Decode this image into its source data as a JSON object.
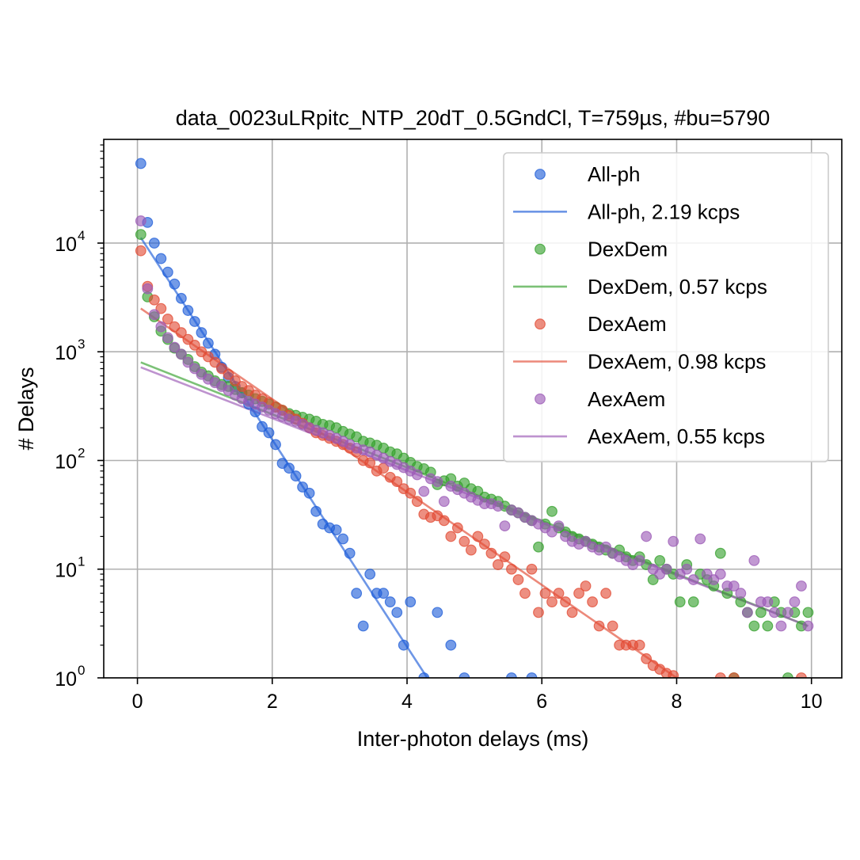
{
  "chart_data": {
    "type": "scatter",
    "title": "data_0023uLRpitc_NTP_20dT_0.5GndCl, T=759µs, #bu=5790",
    "xlabel": "Inter-photon delays (ms)",
    "ylabel": "# Delays",
    "xlim": [
      -0.5,
      10.45
    ],
    "ylim": [
      1,
      90000
    ],
    "yscale": "log",
    "grid": true,
    "legend_position": "top-right",
    "x_ticks": [
      "0",
      "2",
      "4",
      "6",
      "8",
      "10"
    ],
    "y_ticks": [
      {
        "base": "10",
        "exp": "0"
      },
      {
        "base": "10",
        "exp": "1"
      },
      {
        "base": "10",
        "exp": "2"
      },
      {
        "base": "10",
        "exp": "3"
      },
      {
        "base": "10",
        "exp": "4"
      }
    ],
    "series": [
      {
        "name": "All-ph",
        "fit_name": "All-ph, 2.19 kcps",
        "color": "#1f5ed8",
        "fit": {
          "x": [
            0.05,
            4.3
          ],
          "y": [
            11200,
            1
          ]
        },
        "x": [
          0.05,
          0.15,
          0.25,
          0.35,
          0.45,
          0.55,
          0.65,
          0.75,
          0.85,
          0.95,
          1.05,
          1.15,
          1.25,
          1.35,
          1.45,
          1.55,
          1.65,
          1.75,
          1.85,
          1.95,
          2.05,
          2.15,
          2.25,
          2.35,
          2.45,
          2.55,
          2.65,
          2.75,
          2.85,
          2.95,
          3.05,
          3.15,
          3.25,
          3.35,
          3.45,
          3.55,
          3.65,
          3.75,
          3.85,
          3.95,
          4.05,
          4.25,
          4.45,
          4.65,
          4.85,
          5.55,
          5.85
        ],
        "y": [
          54000,
          15500,
          10000,
          7200,
          5400,
          4200,
          3100,
          2400,
          1900,
          1500,
          1200,
          950,
          720,
          580,
          480,
          420,
          330,
          280,
          205,
          180,
          140,
          94,
          85,
          72,
          57,
          50,
          34,
          26,
          24,
          23,
          19,
          14,
          6,
          3,
          9,
          6,
          6,
          5,
          4,
          2,
          5,
          1,
          4,
          2,
          1,
          1,
          1
        ]
      },
      {
        "name": "DexDem",
        "fit_name": "DexDem, 0.57 kcps",
        "color": "#34a02c",
        "fit": {
          "x": [
            0.05,
            9.95
          ],
          "y": [
            800,
            3
          ]
        },
        "x": [
          0.05,
          0.15,
          0.25,
          0.35,
          0.45,
          0.55,
          0.65,
          0.75,
          0.85,
          0.95,
          1.05,
          1.15,
          1.25,
          1.35,
          1.45,
          1.55,
          1.65,
          1.75,
          1.85,
          1.95,
          2.05,
          2.15,
          2.25,
          2.35,
          2.45,
          2.55,
          2.65,
          2.75,
          2.85,
          2.95,
          3.05,
          3.15,
          3.25,
          3.35,
          3.45,
          3.55,
          3.65,
          3.75,
          3.85,
          3.95,
          4.05,
          4.15,
          4.25,
          4.35,
          4.45,
          4.55,
          4.65,
          4.75,
          4.85,
          4.95,
          5.05,
          5.15,
          5.25,
          5.35,
          5.45,
          5.55,
          5.65,
          5.75,
          5.85,
          5.95,
          6.05,
          6.15,
          6.25,
          6.35,
          6.45,
          6.55,
          6.65,
          6.75,
          6.85,
          6.95,
          7.05,
          7.15,
          7.25,
          7.35,
          7.45,
          7.55,
          7.65,
          7.75,
          7.85,
          7.95,
          8.05,
          8.15,
          8.25,
          8.35,
          8.45,
          8.55,
          8.65,
          8.75,
          8.85,
          8.95,
          9.05,
          9.15,
          9.25,
          9.35,
          9.45,
          9.55,
          9.65,
          9.75,
          9.85,
          9.95
        ],
        "y": [
          12000,
          3200,
          2100,
          1550,
          1300,
          1080,
          950,
          850,
          730,
          650,
          600,
          540,
          500,
          480,
          450,
          420,
          400,
          370,
          350,
          330,
          310,
          290,
          270,
          260,
          250,
          240,
          230,
          215,
          210,
          200,
          185,
          175,
          165,
          150,
          145,
          138,
          130,
          120,
          115,
          105,
          96,
          88,
          84,
          78,
          60,
          65,
          68,
          58,
          62,
          55,
          52,
          46,
          44,
          42,
          38,
          35,
          33,
          30,
          28,
          16,
          26,
          34,
          24,
          22,
          20,
          19,
          18,
          17,
          16,
          15,
          14,
          15,
          13,
          12,
          13,
          11,
          8,
          12,
          10,
          9,
          5,
          11,
          5,
          9,
          8,
          7,
          14,
          6,
          1,
          5,
          4,
          3,
          4,
          3,
          5,
          4,
          1,
          4,
          3,
          4
        ]
      },
      {
        "name": "DexAem",
        "fit_name": "DexAem, 0.98 kcps",
        "color": "#e24a33",
        "fit": {
          "x": [
            0.05,
            8.0
          ],
          "y": [
            2500,
            1
          ]
        },
        "x": [
          0.05,
          0.15,
          0.25,
          0.35,
          0.45,
          0.55,
          0.65,
          0.75,
          0.85,
          0.95,
          1.05,
          1.15,
          1.25,
          1.35,
          1.45,
          1.55,
          1.65,
          1.75,
          1.85,
          1.95,
          2.05,
          2.15,
          2.25,
          2.35,
          2.45,
          2.55,
          2.65,
          2.75,
          2.85,
          2.95,
          3.05,
          3.15,
          3.25,
          3.35,
          3.45,
          3.55,
          3.65,
          3.75,
          3.85,
          3.95,
          4.05,
          4.15,
          4.25,
          4.35,
          4.45,
          4.55,
          4.65,
          4.75,
          4.85,
          4.95,
          5.05,
          5.15,
          5.25,
          5.35,
          5.45,
          5.55,
          5.65,
          5.75,
          5.85,
          5.95,
          6.05,
          6.15,
          6.25,
          6.35,
          6.45,
          6.55,
          6.65,
          6.75,
          6.85,
          6.95,
          7.05,
          7.15,
          7.25,
          7.35,
          7.45,
          7.55,
          7.65,
          7.75,
          7.85,
          7.95,
          8.65,
          8.85,
          9.85
        ],
        "y": [
          8500,
          4000,
          3000,
          2500,
          2000,
          1700,
          1500,
          1300,
          1150,
          1000,
          900,
          800,
          700,
          620,
          540,
          480,
          440,
          400,
          370,
          340,
          310,
          290,
          260,
          240,
          220,
          200,
          180,
          170,
          160,
          150,
          140,
          130,
          120,
          100,
          95,
          80,
          85,
          70,
          64,
          55,
          50,
          42,
          32,
          30,
          31,
          28,
          20,
          24,
          18,
          15,
          20,
          17,
          14,
          11,
          13,
          10,
          8,
          6,
          10,
          4,
          6,
          5,
          6,
          5,
          4,
          6,
          7,
          5,
          3,
          6,
          3,
          2,
          2,
          2,
          2,
          1.5,
          1.3,
          1.2,
          1.1,
          1.05,
          1,
          1,
          1
        ]
      },
      {
        "name": "AexAem",
        "fit_name": "AexAem, 0.55 kcps",
        "color": "#9b59b6",
        "fit": {
          "x": [
            0.05,
            9.95
          ],
          "y": [
            720,
            3
          ]
        },
        "x": [
          0.05,
          0.15,
          0.25,
          0.35,
          0.45,
          0.55,
          0.65,
          0.75,
          0.85,
          0.95,
          1.05,
          1.15,
          1.25,
          1.35,
          1.45,
          1.55,
          1.65,
          1.75,
          1.85,
          1.95,
          2.05,
          2.15,
          2.25,
          2.35,
          2.45,
          2.55,
          2.65,
          2.75,
          2.85,
          2.95,
          3.05,
          3.15,
          3.25,
          3.35,
          3.45,
          3.55,
          3.65,
          3.75,
          3.85,
          3.95,
          4.05,
          4.15,
          4.25,
          4.35,
          4.45,
          4.55,
          4.65,
          4.75,
          4.85,
          4.95,
          5.05,
          5.15,
          5.25,
          5.35,
          5.45,
          5.55,
          5.65,
          5.75,
          5.85,
          5.95,
          6.05,
          6.15,
          6.25,
          6.35,
          6.45,
          6.55,
          6.65,
          6.75,
          6.85,
          6.95,
          7.05,
          7.15,
          7.25,
          7.35,
          7.45,
          7.55,
          7.65,
          7.75,
          7.85,
          7.95,
          8.05,
          8.15,
          8.25,
          8.35,
          8.45,
          8.55,
          8.65,
          8.75,
          8.85,
          8.95,
          9.05,
          9.15,
          9.25,
          9.35,
          9.45,
          9.55,
          9.65,
          9.75,
          9.85,
          9.95
        ],
        "y": [
          16000,
          3800,
          2200,
          1700,
          1350,
          1100,
          950,
          800,
          700,
          620,
          560,
          520,
          480,
          440,
          400,
          370,
          350,
          330,
          310,
          290,
          270,
          255,
          240,
          230,
          215,
          200,
          190,
          180,
          170,
          160,
          150,
          140,
          130,
          125,
          120,
          112,
          105,
          98,
          92,
          86,
          80,
          74,
          52,
          68,
          64,
          42,
          58,
          54,
          50,
          46,
          43,
          40,
          40,
          38,
          25,
          35,
          33,
          30,
          28,
          26,
          24,
          22,
          25,
          20,
          18,
          17,
          18,
          16,
          15,
          16,
          14,
          13,
          12,
          11,
          12,
          20,
          10,
          9,
          10,
          18,
          9,
          10,
          8,
          19,
          9,
          8,
          9,
          7,
          7,
          6,
          4,
          12,
          5,
          5,
          4,
          3,
          4,
          5,
          7,
          3
        ]
      }
    ]
  }
}
